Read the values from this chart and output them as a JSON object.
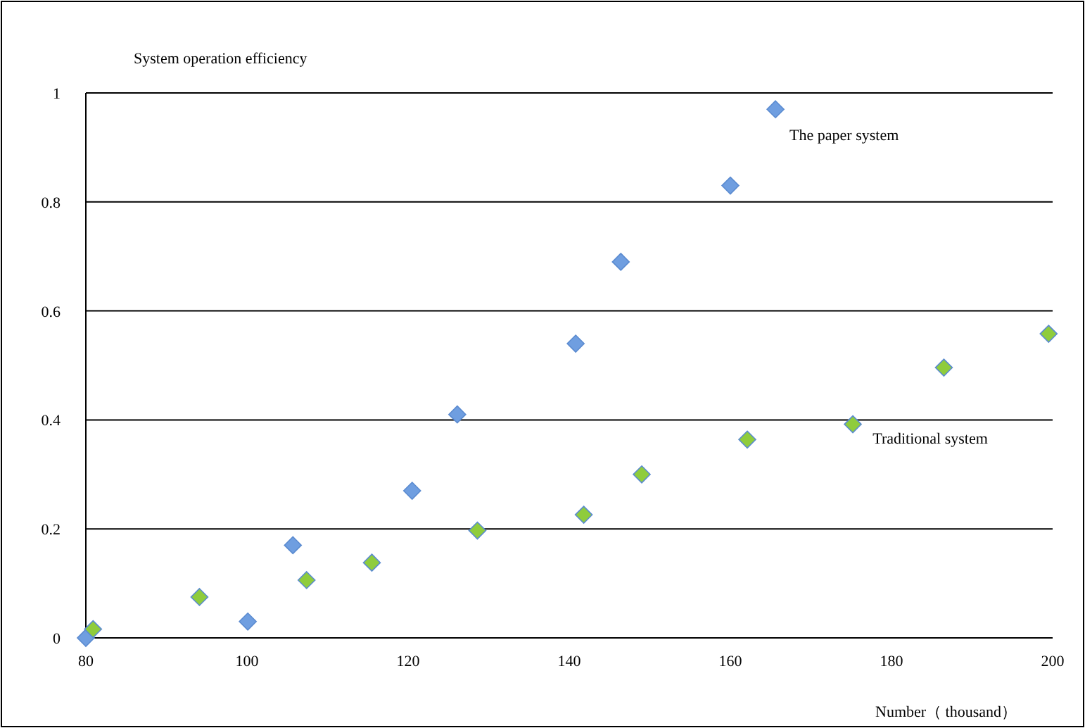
{
  "chart_data": {
    "type": "scatter",
    "ylabel": "System operation efficiency",
    "xlabel": "Number（ thousand）",
    "xlim": [
      80,
      200
    ],
    "ylim": [
      0,
      1
    ],
    "xticks": [
      80,
      100,
      120,
      140,
      160,
      180,
      200
    ],
    "yticks": [
      0,
      0.2,
      0.4,
      0.6,
      0.8,
      1
    ],
    "grid": "y",
    "marker": "diamond",
    "series": [
      {
        "name": "The paper system",
        "color": "#6f9ee0",
        "x": [
          80,
          100.1,
          105.7,
          120.5,
          126.1,
          140.8,
          146.4,
          160,
          165.6
        ],
        "values": [
          0,
          0.03,
          0.17,
          0.27,
          0.41,
          0.54,
          0.69,
          0.83,
          0.97
        ]
      },
      {
        "name": "Traditional system",
        "color": "#8fcc3c",
        "x": [
          80.9,
          94.1,
          107.4,
          115.5,
          128.6,
          141.8,
          149,
          162.1,
          175.2,
          186.5,
          199.5
        ],
        "values": [
          0.016,
          0.075,
          0.106,
          0.138,
          0.197,
          0.226,
          0.3,
          0.364,
          0.392,
          0.496,
          0.558
        ]
      }
    ]
  }
}
